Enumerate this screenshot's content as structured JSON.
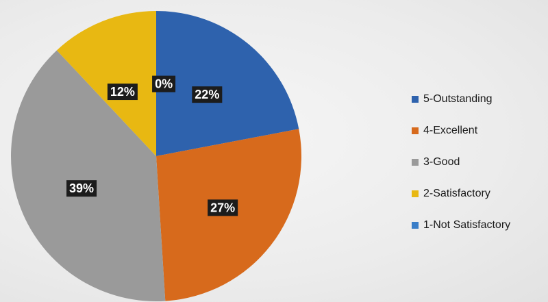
{
  "chart_data": {
    "type": "pie",
    "title": "",
    "start_angle_deg": 0,
    "direction": "clockwise",
    "slices": [
      {
        "name": "5-Outstanding",
        "value": 22,
        "label": "22%",
        "color": "#2e62ad"
      },
      {
        "name": "4-Excellent",
        "value": 27,
        "label": "27%",
        "color": "#d76a1c"
      },
      {
        "name": "3-Good",
        "value": 39,
        "label": "39%",
        "color": "#9a9a9a"
      },
      {
        "name": "2-Satisfactory",
        "value": 12,
        "label": "12%",
        "color": "#e8b812"
      },
      {
        "name": "1-Not Satisfactory",
        "value": 0,
        "label": "0%",
        "color": "#3a7ec8"
      }
    ],
    "legend": {
      "position": "right",
      "entries": [
        {
          "label": "5-Outstanding",
          "color": "#2e62ad"
        },
        {
          "label": "4-Excellent",
          "color": "#d76a1c"
        },
        {
          "label": "3-Good",
          "color": "#9a9a9a"
        },
        {
          "label": "2-Satisfactory",
          "color": "#e8b812"
        },
        {
          "label": "1-Not Satisfactory",
          "color": "#3a7ec8"
        }
      ]
    }
  }
}
